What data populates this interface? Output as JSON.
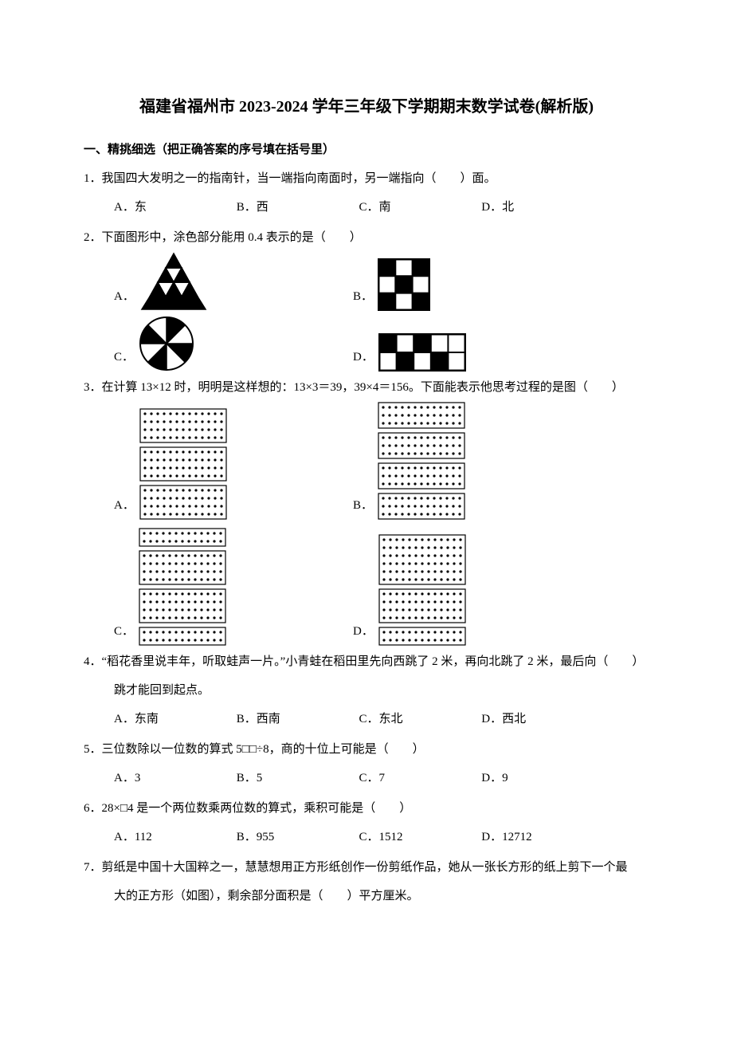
{
  "colors": {
    "fg": "#000000",
    "bg": "#ffffff"
  },
  "typography": {
    "base_fontsize": 15,
    "title_fontsize": 20,
    "line_height": 2.4,
    "font_family": "SimSun"
  },
  "title": "福建省福州市 2023-2024 学年三年级下学期期末数学试卷(解析版)",
  "section1_heading": "一、精挑细选（把正确答案的序号填在括号里）",
  "q1": {
    "num": "1．",
    "text": "我国四大发明之一的指南针，当一端指向南面时，另一端指向（　　）面。",
    "opts": {
      "A": "A．东",
      "B": "B．西",
      "C": "C．南",
      "D": "D．北"
    }
  },
  "q2": {
    "num": "2．",
    "text": "下面图形中，涂色部分能用 0.4 表示的是（　　）",
    "labels": {
      "A": "A．",
      "B": "B．",
      "C": "C．",
      "D": "D．"
    },
    "figA": {
      "type": "triangle-grid",
      "rows": 3,
      "shaded_bottom_outer": true,
      "shaded_top": true,
      "colors": {
        "fill": "#000000",
        "stroke": "#000000"
      }
    },
    "figB": {
      "type": "grid",
      "rows": 3,
      "cols": 3,
      "shaded": [
        [
          0,
          0
        ],
        [
          0,
          2
        ],
        [
          1,
          1
        ],
        [
          2,
          0
        ],
        [
          2,
          2
        ]
      ],
      "border_width": 3,
      "cell_size": 20
    },
    "figC": {
      "type": "pie",
      "slices": 8,
      "shaded_alternating": true,
      "colors": {
        "fill": "#000000"
      }
    },
    "figD": {
      "type": "grid",
      "rows": 2,
      "cols": 5,
      "shaded": [
        [
          0,
          0
        ],
        [
          0,
          2
        ],
        [
          1,
          1
        ],
        [
          1,
          3
        ]
      ],
      "border_width": 3,
      "cell_size": 20
    }
  },
  "q3": {
    "num": "3．",
    "text": "在计算 13×12 时，明明是这样想的：13×3＝39，39×4＝156。下面能表示他思考过程的是图（　　）",
    "labels": {
      "A": "A．",
      "B": "B．",
      "C": "C．",
      "D": "D．"
    },
    "figs": {
      "cols": 13,
      "col_gap": 8,
      "row_gap": 10,
      "dot_r": 1.6,
      "box_stroke": "#000000",
      "dot_fill": "#000000",
      "A": {
        "groups": [
          4,
          4,
          4
        ],
        "box_pad": 6
      },
      "B": {
        "groups": [
          3,
          3,
          3,
          3
        ],
        "box_pad": 6
      },
      "C": {
        "groups": [
          2,
          4,
          4,
          2
        ],
        "box_pad": 6
      },
      "D": {
        "groups": [
          6,
          4,
          2
        ],
        "box_pad": 6
      }
    }
  },
  "q4": {
    "num": "4．",
    "text_a": "“稻花香里说丰年，听取蛙声一片。”小青蛙在稻田里先向西跳了 2 米，再向北跳了 2 米，最后向（　　）",
    "text_b": "跳才能回到起点。",
    "opts": {
      "A": "A．东南",
      "B": "B．西南",
      "C": "C．东北",
      "D": "D．西北"
    }
  },
  "q5": {
    "num": "5．",
    "text": "三位数除以一位数的算式 5□□÷8，商的十位上可能是（　　）",
    "opts": {
      "A": "A．3",
      "B": "B．5",
      "C": "C．7",
      "D": "D．9"
    }
  },
  "q6": {
    "num": "6．",
    "text": "28×□4 是一个两位数乘两位数的算式，乘积可能是（　　）",
    "opts": {
      "A": "A．112",
      "B": "B．955",
      "C": "C．1512",
      "D": "D．12712"
    }
  },
  "q7": {
    "num": "7．",
    "text_a": "剪纸是中国十大国粹之一，慧慧想用正方形纸创作一份剪纸作品，她从一张长方形的纸上剪下一个最",
    "text_b": "大的正方形（如图），剩余部分面积是（　　）平方厘米。"
  }
}
